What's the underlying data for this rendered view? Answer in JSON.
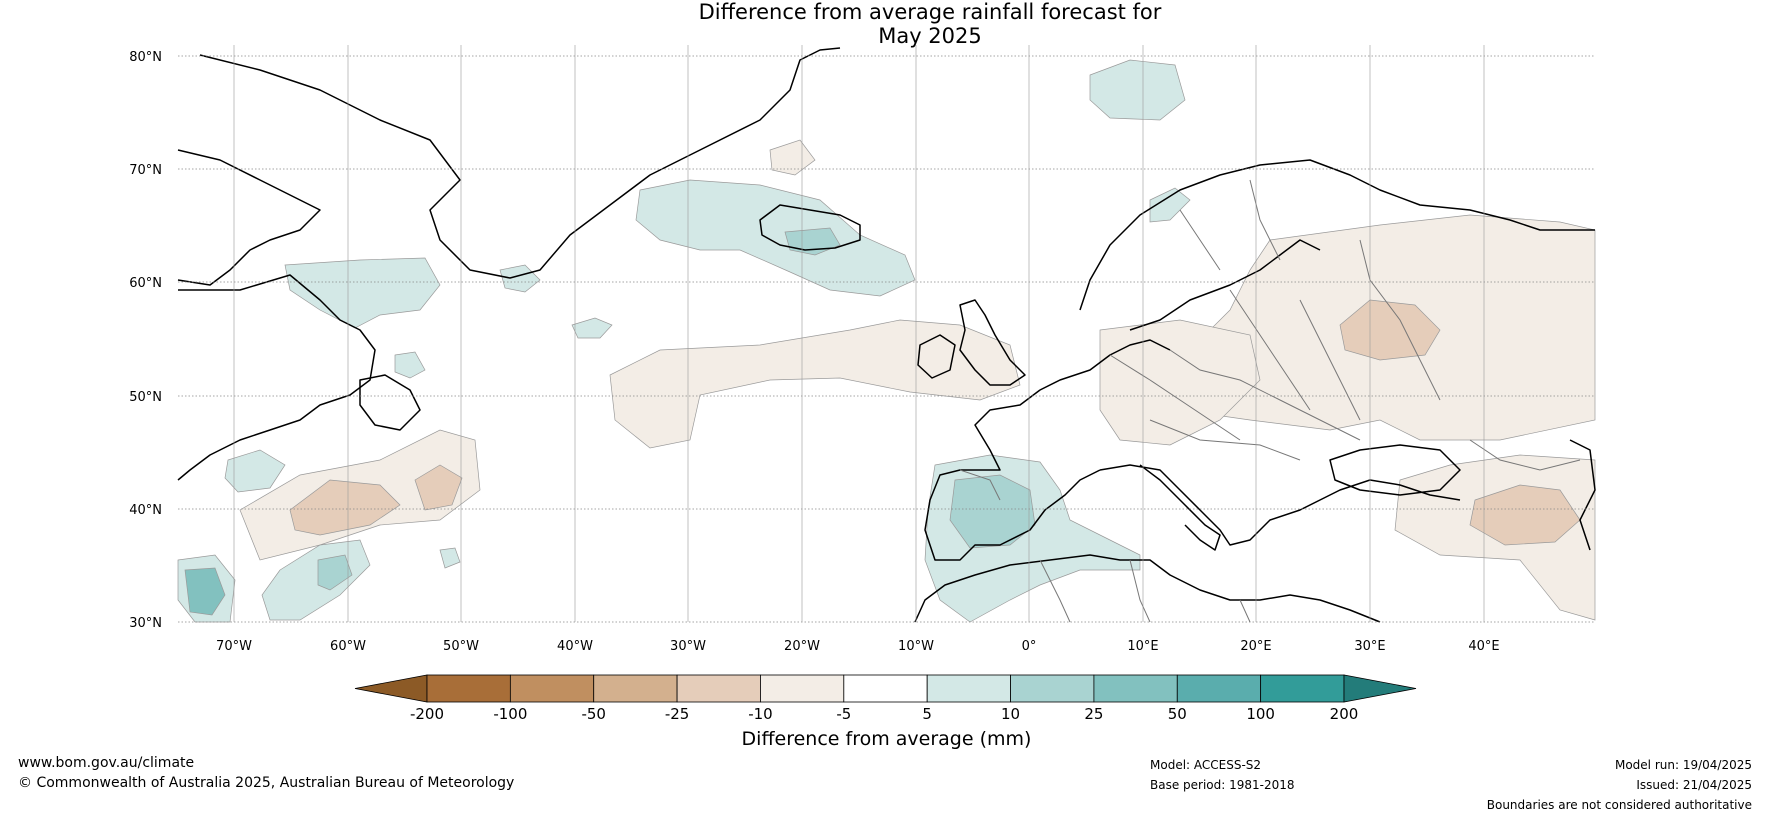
{
  "title_line1": "Difference from average rainfall forecast for",
  "title_line2": "May 2025",
  "lat_labels": [
    "80°N",
    "70°N",
    "60°N",
    "50°N",
    "40°N",
    "30°N"
  ],
  "lon_labels": [
    "70°W",
    "60°W",
    "50°W",
    "40°W",
    "30°W",
    "20°W",
    "10°W",
    "0°",
    "10°E",
    "20°E",
    "30°E",
    "40°E"
  ],
  "colorbar": {
    "ticks": [
      "-200",
      "-100",
      "-50",
      "-25",
      "-10",
      "-5",
      "5",
      "10",
      "25",
      "50",
      "100",
      "200"
    ],
    "colors": [
      "#8c5a26",
      "#a86e38",
      "#c08f60",
      "#d3b08e",
      "#e5cdba",
      "#f3ede6",
      "#ffffff",
      "#d3e8e6",
      "#a9d3d1",
      "#82c1bf",
      "#5aadad",
      "#329c99",
      "#237c7a"
    ],
    "label": "Difference from average (mm)"
  },
  "footer_left": {
    "url": "www.bom.gov.au/climate",
    "copyright": "© Commonwealth of Australia 2025, Australian Bureau of Meteorology"
  },
  "footer_mid": {
    "model": "Model: ACCESS-S2",
    "base": "Base period: 1981-2018"
  },
  "footer_right": {
    "run": "Model run: 19/04/2025",
    "issued": "Issued: 21/04/2025",
    "disclaimer": "Boundaries are not considered authoritative"
  }
}
